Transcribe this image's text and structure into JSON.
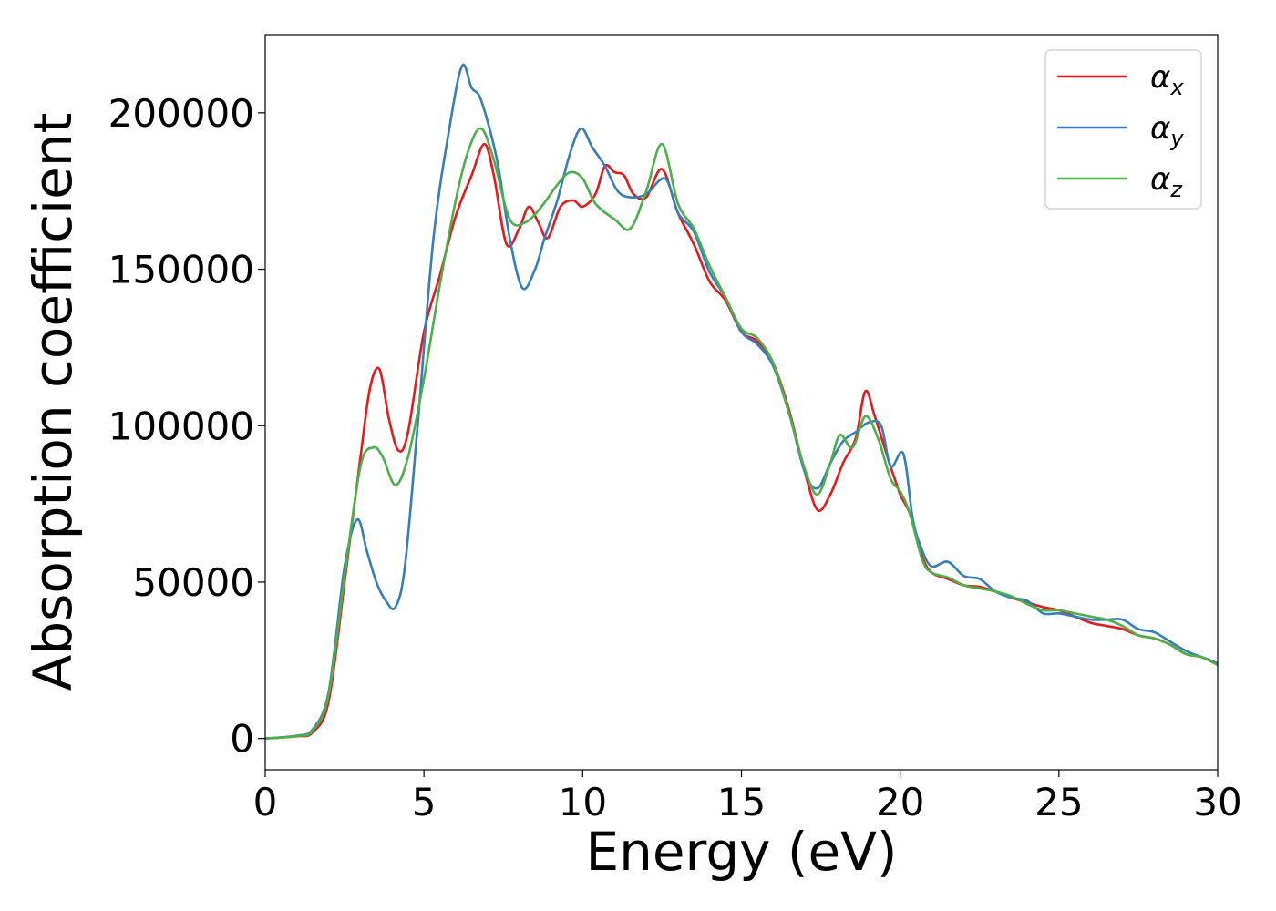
{
  "chart_data": {
    "type": "line",
    "xlabel": "Energy (eV)",
    "ylabel": "Absorption coefficient",
    "xlim": [
      0,
      30
    ],
    "ylim": [
      -10000,
      225000
    ],
    "xticks": [
      "0",
      "5",
      "10",
      "15",
      "20",
      "25",
      "30"
    ],
    "yticks": [
      "0",
      "50000",
      "100000",
      "150000",
      "200000"
    ],
    "xtick_values": [
      0,
      5,
      10,
      15,
      20,
      25,
      30
    ],
    "ytick_values": [
      0,
      50000,
      100000,
      150000,
      200000
    ],
    "grid": false,
    "legend_position": "top-right",
    "series": [
      {
        "name": "α",
        "subscript": "x",
        "color": "#e41a1c",
        "points": [
          [
            0,
            0
          ],
          [
            1,
            700
          ],
          [
            1.5,
            2000
          ],
          [
            2,
            12000
          ],
          [
            2.5,
            50000
          ],
          [
            3,
            90000
          ],
          [
            3.3,
            112000
          ],
          [
            3.6,
            118000
          ],
          [
            3.9,
            102000
          ],
          [
            4.2,
            92000
          ],
          [
            4.5,
            98000
          ],
          [
            5,
            130000
          ],
          [
            5.5,
            148000
          ],
          [
            6,
            167000
          ],
          [
            6.5,
            180000
          ],
          [
            6.9,
            190000
          ],
          [
            7.2,
            180000
          ],
          [
            7.6,
            158000
          ],
          [
            8,
            163000
          ],
          [
            8.3,
            170000
          ],
          [
            8.6,
            165000
          ],
          [
            8.9,
            160000
          ],
          [
            9.3,
            170000
          ],
          [
            9.7,
            172000
          ],
          [
            10,
            170000
          ],
          [
            10.4,
            174000
          ],
          [
            10.7,
            183000
          ],
          [
            11,
            181000
          ],
          [
            11.3,
            180000
          ],
          [
            11.6,
            174000
          ],
          [
            12,
            173000
          ],
          [
            12.5,
            182000
          ],
          [
            13,
            168000
          ],
          [
            13.5,
            158000
          ],
          [
            14,
            146000
          ],
          [
            14.5,
            140000
          ],
          [
            15,
            130000
          ],
          [
            15.5,
            127000
          ],
          [
            16,
            120000
          ],
          [
            16.5,
            105000
          ],
          [
            17,
            85000
          ],
          [
            17.4,
            73000
          ],
          [
            17.8,
            78000
          ],
          [
            18.2,
            88000
          ],
          [
            18.6,
            96000
          ],
          [
            18.9,
            111000
          ],
          [
            19.2,
            103000
          ],
          [
            19.6,
            90000
          ],
          [
            20,
            78000
          ],
          [
            20.3,
            72000
          ],
          [
            20.7,
            58000
          ],
          [
            21,
            53000
          ],
          [
            21.5,
            51000
          ],
          [
            22,
            49000
          ],
          [
            22.5,
            48500
          ],
          [
            23,
            47000
          ],
          [
            23.5,
            45000
          ],
          [
            24,
            43500
          ],
          [
            24.5,
            42000
          ],
          [
            25,
            41000
          ],
          [
            25.5,
            39000
          ],
          [
            26,
            37000
          ],
          [
            26.5,
            36000
          ],
          [
            27,
            35000
          ],
          [
            27.5,
            33000
          ],
          [
            28,
            32000
          ],
          [
            28.5,
            30000
          ],
          [
            29,
            27000
          ],
          [
            29.5,
            26000
          ],
          [
            30,
            24000
          ]
        ]
      },
      {
        "name": "α",
        "subscript": "y",
        "color": "#377eb8",
        "points": [
          [
            0,
            0
          ],
          [
            1,
            900
          ],
          [
            1.5,
            3000
          ],
          [
            2,
            15000
          ],
          [
            2.5,
            55000
          ],
          [
            2.9,
            70000
          ],
          [
            3.2,
            60000
          ],
          [
            3.5,
            50000
          ],
          [
            3.8,
            44000
          ],
          [
            4.1,
            42000
          ],
          [
            4.4,
            55000
          ],
          [
            4.8,
            100000
          ],
          [
            5.3,
            160000
          ],
          [
            5.8,
            195000
          ],
          [
            6.2,
            215000
          ],
          [
            6.5,
            208000
          ],
          [
            6.8,
            204000
          ],
          [
            7.3,
            185000
          ],
          [
            7.7,
            160000
          ],
          [
            8.1,
            144000
          ],
          [
            8.5,
            150000
          ],
          [
            8.8,
            160000
          ],
          [
            9.2,
            172000
          ],
          [
            9.6,
            187000
          ],
          [
            9.95,
            195000
          ],
          [
            10.3,
            189000
          ],
          [
            10.7,
            183000
          ],
          [
            11.1,
            175000
          ],
          [
            11.5,
            173000
          ],
          [
            12,
            174000
          ],
          [
            12.6,
            179000
          ],
          [
            13,
            168000
          ],
          [
            13.5,
            162000
          ],
          [
            14,
            149000
          ],
          [
            14.5,
            141000
          ],
          [
            15,
            130000
          ],
          [
            15.5,
            126000
          ],
          [
            16,
            119000
          ],
          [
            16.5,
            104000
          ],
          [
            17,
            85000
          ],
          [
            17.4,
            80000
          ],
          [
            17.8,
            88000
          ],
          [
            18.2,
            95000
          ],
          [
            18.6,
            98000
          ],
          [
            19,
            101000
          ],
          [
            19.4,
            100000
          ],
          [
            19.7,
            87000
          ],
          [
            20.1,
            91000
          ],
          [
            20.4,
            70000
          ],
          [
            20.7,
            60000
          ],
          [
            21,
            55000
          ],
          [
            21.5,
            56500
          ],
          [
            22,
            52000
          ],
          [
            22.5,
            51000
          ],
          [
            23,
            47000
          ],
          [
            23.5,
            45000
          ],
          [
            24,
            44000
          ],
          [
            24.5,
            40000
          ],
          [
            25,
            40000
          ],
          [
            25.5,
            39000
          ],
          [
            26,
            38000
          ],
          [
            26.5,
            38000
          ],
          [
            27,
            38000
          ],
          [
            27.5,
            35000
          ],
          [
            28,
            34000
          ],
          [
            28.5,
            31000
          ],
          [
            29,
            28000
          ],
          [
            29.5,
            26000
          ],
          [
            30,
            24000
          ]
        ]
      },
      {
        "name": "α",
        "subscript": "z",
        "color": "#4daf4a",
        "points": [
          [
            0,
            0
          ],
          [
            1,
            800
          ],
          [
            1.5,
            2500
          ],
          [
            2,
            14000
          ],
          [
            2.5,
            52000
          ],
          [
            3,
            87000
          ],
          [
            3.4,
            93000
          ],
          [
            3.7,
            90000
          ],
          [
            4.1,
            81000
          ],
          [
            4.5,
            90000
          ],
          [
            5,
            115000
          ],
          [
            5.5,
            145000
          ],
          [
            6,
            172000
          ],
          [
            6.4,
            188000
          ],
          [
            6.8,
            195000
          ],
          [
            7.2,
            185000
          ],
          [
            7.7,
            166000
          ],
          [
            8.2,
            165000
          ],
          [
            8.7,
            170000
          ],
          [
            9.2,
            177000
          ],
          [
            9.6,
            181000
          ],
          [
            10,
            179000
          ],
          [
            10.4,
            171000
          ],
          [
            11,
            166000
          ],
          [
            11.5,
            163000
          ],
          [
            12,
            175000
          ],
          [
            12.5,
            190000
          ],
          [
            13,
            171000
          ],
          [
            13.5,
            163000
          ],
          [
            14,
            151000
          ],
          [
            14.5,
            141000
          ],
          [
            15,
            131000
          ],
          [
            15.5,
            128000
          ],
          [
            16,
            120000
          ],
          [
            16.5,
            104000
          ],
          [
            17,
            86000
          ],
          [
            17.4,
            78000
          ],
          [
            17.8,
            88000
          ],
          [
            18.1,
            97000
          ],
          [
            18.5,
            93000
          ],
          [
            18.9,
            103000
          ],
          [
            19.3,
            96000
          ],
          [
            19.7,
            83000
          ],
          [
            20,
            79000
          ],
          [
            20.3,
            72000
          ],
          [
            20.7,
            57000
          ],
          [
            21,
            53000
          ],
          [
            21.5,
            51500
          ],
          [
            22,
            49000
          ],
          [
            22.5,
            48000
          ],
          [
            23,
            47000
          ],
          [
            23.5,
            45500
          ],
          [
            24,
            43000
          ],
          [
            24.5,
            41000
          ],
          [
            25,
            41000
          ],
          [
            25.5,
            40000
          ],
          [
            26,
            39000
          ],
          [
            26.5,
            38000
          ],
          [
            27,
            36000
          ],
          [
            27.5,
            33000
          ],
          [
            28,
            32000
          ],
          [
            28.5,
            30000
          ],
          [
            29,
            27000
          ],
          [
            29.5,
            26000
          ],
          [
            30,
            23500
          ]
        ]
      }
    ]
  }
}
